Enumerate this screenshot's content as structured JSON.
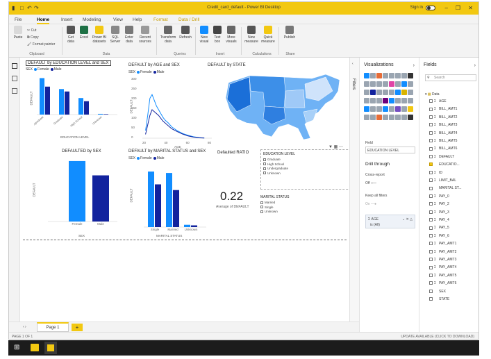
{
  "window": {
    "title": "Credit_card_default - Power BI Desktop",
    "sign_in": "Sign in"
  },
  "menu": [
    "File",
    "Home",
    "Insert",
    "Modeling",
    "View",
    "Help",
    "Format",
    "Data / Drill"
  ],
  "ribbon": {
    "buttons": [
      {
        "label": "Paste"
      },
      {
        "label": "Get data"
      },
      {
        "label": "Excel"
      },
      {
        "label": "Power BI datasets"
      },
      {
        "label": "SQL Server"
      },
      {
        "label": "Enter data"
      },
      {
        "label": "Recent sources"
      },
      {
        "label": "Transform data"
      },
      {
        "label": "Refresh"
      },
      {
        "label": "New visual"
      },
      {
        "label": "Text box"
      },
      {
        "label": "More visuals"
      },
      {
        "label": "New measure"
      },
      {
        "label": "Quick measure"
      },
      {
        "label": "Publish"
      }
    ],
    "clipboard_items": [
      "Cut",
      "Copy",
      "Format painter"
    ],
    "groups": [
      "Clipboard",
      "Data",
      "Queries",
      "Insert",
      "Calculations",
      "Share"
    ]
  },
  "visuals": {
    "edu": {
      "title": "DEFAULT by EDUCATION LEVEL and SEX",
      "legend_label": "SEX",
      "legend": [
        "Female",
        "Male"
      ],
      "xlabel": "EDUCATION LEVEL",
      "ylabel": "DEFAULT"
    },
    "age": {
      "title": "DEFAULT by AGE and SEX",
      "legend_label": "SEX",
      "legend": [
        "Female",
        "Male"
      ],
      "xlabel": "AGE",
      "ylabel": "DEFAULT",
      "yticks": [
        "300",
        "250",
        "200",
        "150",
        "100",
        "50",
        "0"
      ],
      "xticks": [
        "20",
        "40",
        "60",
        "80"
      ]
    },
    "state": {
      "title": "DEFAULT by STATE"
    },
    "sex": {
      "title": "DEFAULTED by SEX",
      "xlabel": "SEX",
      "ylabel": "DEFAULT",
      "categories": [
        "Female",
        "Male"
      ]
    },
    "marital": {
      "title": "DEFAULT by MARITAL STATUS and SEX",
      "legend_label": "SEX",
      "legend": [
        "Female",
        "Male"
      ],
      "xlabel": "MARITAL STATUS",
      "ylabel": "DEFAULT",
      "categories": [
        "Single",
        "Married",
        "Unknown"
      ]
    },
    "ratio": {
      "title": "Defaulted RATIO",
      "value": "0.22",
      "label": "Average of DEFAULT"
    },
    "slicer_edu": {
      "title": "EDUCATION LEVEL",
      "items": [
        "Graduate",
        "High School",
        "Undergraduate",
        "Unknown"
      ]
    },
    "slicer_marital": {
      "title": "MARITAL STATUS",
      "items": [
        "Married",
        "Single",
        "Unknown"
      ]
    }
  },
  "chart_data": [
    {
      "type": "bar",
      "title": "DEFAULT by EDUCATION LEVEL and SEX",
      "categories": [
        "Undergraduate",
        "Graduate",
        "High School",
        "Unknown"
      ],
      "series": [
        {
          "name": "Female",
          "values": [
            1500,
            1050,
            680,
            30
          ]
        },
        {
          "name": "Male",
          "values": [
            1150,
            950,
            550,
            20
          ]
        }
      ],
      "xlabel": "EDUCATION LEVEL",
      "ylabel": "DEFAULT"
    },
    {
      "type": "line",
      "title": "DEFAULT by AGE and SEX",
      "x": [
        21,
        23,
        25,
        27,
        29,
        31,
        33,
        35,
        37,
        39,
        42,
        45,
        50,
        55,
        60,
        65,
        70,
        75
      ],
      "series": [
        {
          "name": "Female",
          "values": [
            40,
            120,
            210,
            230,
            200,
            170,
            150,
            130,
            110,
            95,
            80,
            60,
            40,
            25,
            15,
            8,
            3,
            1
          ]
        },
        {
          "name": "Male",
          "values": [
            20,
            70,
            120,
            150,
            140,
            130,
            120,
            105,
            90,
            80,
            65,
            50,
            35,
            22,
            12,
            6,
            2,
            1
          ]
        }
      ],
      "xlabel": "AGE",
      "ylabel": "DEFAULT",
      "ylim": [
        0,
        300
      ]
    },
    {
      "type": "bar",
      "title": "DEFAULTED by SEX",
      "categories": [
        "Female",
        "Male"
      ],
      "values": [
        3760,
        2870
      ],
      "xlabel": "SEX",
      "ylabel": "DEFAULT"
    },
    {
      "type": "bar",
      "title": "DEFAULT by MARITAL STATUS and SEX",
      "categories": [
        "Single",
        "Married",
        "Unknown"
      ],
      "series": [
        {
          "name": "Female",
          "values": [
            1950,
            1900,
            80
          ]
        },
        {
          "name": "Male",
          "values": [
            1500,
            1300,
            60
          ]
        }
      ],
      "xlabel": "MARITAL STATUS",
      "ylabel": "DEFAULT"
    }
  ],
  "viz_pane": {
    "title": "Visualizations",
    "field_label": "Field",
    "field_value": "EDUCATION LEVEL",
    "drill_title": "Drill through",
    "cross_report": "Cross-report",
    "cross_state": "Off",
    "keep_filters": "Keep all filters",
    "keep_state": "On",
    "well_field": "AGE",
    "well_value": "is (All)"
  },
  "filters_label": "Filters",
  "fields_pane": {
    "title": "Fields",
    "search_placeholder": "Search",
    "table": "Data",
    "fields": [
      {
        "name": "AGE",
        "sigma": true,
        "checked": false
      },
      {
        "name": "BILL_AMT1",
        "sigma": true,
        "checked": false
      },
      {
        "name": "BILL_AMT2",
        "sigma": true,
        "checked": false
      },
      {
        "name": "BILL_AMT3",
        "sigma": true,
        "checked": false
      },
      {
        "name": "BILL_AMT4",
        "sigma": true,
        "checked": false
      },
      {
        "name": "BILL_AMT5",
        "sigma": true,
        "checked": false
      },
      {
        "name": "BILL_AMT6",
        "sigma": true,
        "checked": false
      },
      {
        "name": "DEFAULT",
        "sigma": true,
        "checked": false
      },
      {
        "name": "EDUCATIO...",
        "sigma": false,
        "checked": true
      },
      {
        "name": "ID",
        "sigma": true,
        "checked": false
      },
      {
        "name": "LIMIT_BAL",
        "sigma": true,
        "checked": false
      },
      {
        "name": "MARITAL ST...",
        "sigma": false,
        "checked": false
      },
      {
        "name": "PAY_0",
        "sigma": true,
        "checked": false
      },
      {
        "name": "PAY_2",
        "sigma": true,
        "checked": false
      },
      {
        "name": "PAY_3",
        "sigma": true,
        "checked": false
      },
      {
        "name": "PAY_4",
        "sigma": true,
        "checked": false
      },
      {
        "name": "PAY_5",
        "sigma": true,
        "checked": false
      },
      {
        "name": "PAY_6",
        "sigma": true,
        "checked": false
      },
      {
        "name": "PAY_AMT1",
        "sigma": true,
        "checked": false
      },
      {
        "name": "PAY_AMT2",
        "sigma": true,
        "checked": false
      },
      {
        "name": "PAY_AMT3",
        "sigma": true,
        "checked": false
      },
      {
        "name": "PAY_AMT4",
        "sigma": true,
        "checked": false
      },
      {
        "name": "PAY_AMT5",
        "sigma": true,
        "checked": false
      },
      {
        "name": "PAY_AMT6",
        "sigma": true,
        "checked": false
      },
      {
        "name": "SEX",
        "sigma": false,
        "checked": false
      },
      {
        "name": "STATE",
        "sigma": false,
        "checked": false
      }
    ]
  },
  "pages": {
    "tab": "Page 1",
    "add": "+"
  },
  "status": {
    "left": "PAGE 1 OF 1",
    "right": "UPDATE AVAILABLE (CLICK TO DOWNLOAD)"
  },
  "colors": {
    "female": "#118dff",
    "male": "#12239e",
    "accent": "#f2c811",
    "map_light": "#9fc9f7"
  }
}
